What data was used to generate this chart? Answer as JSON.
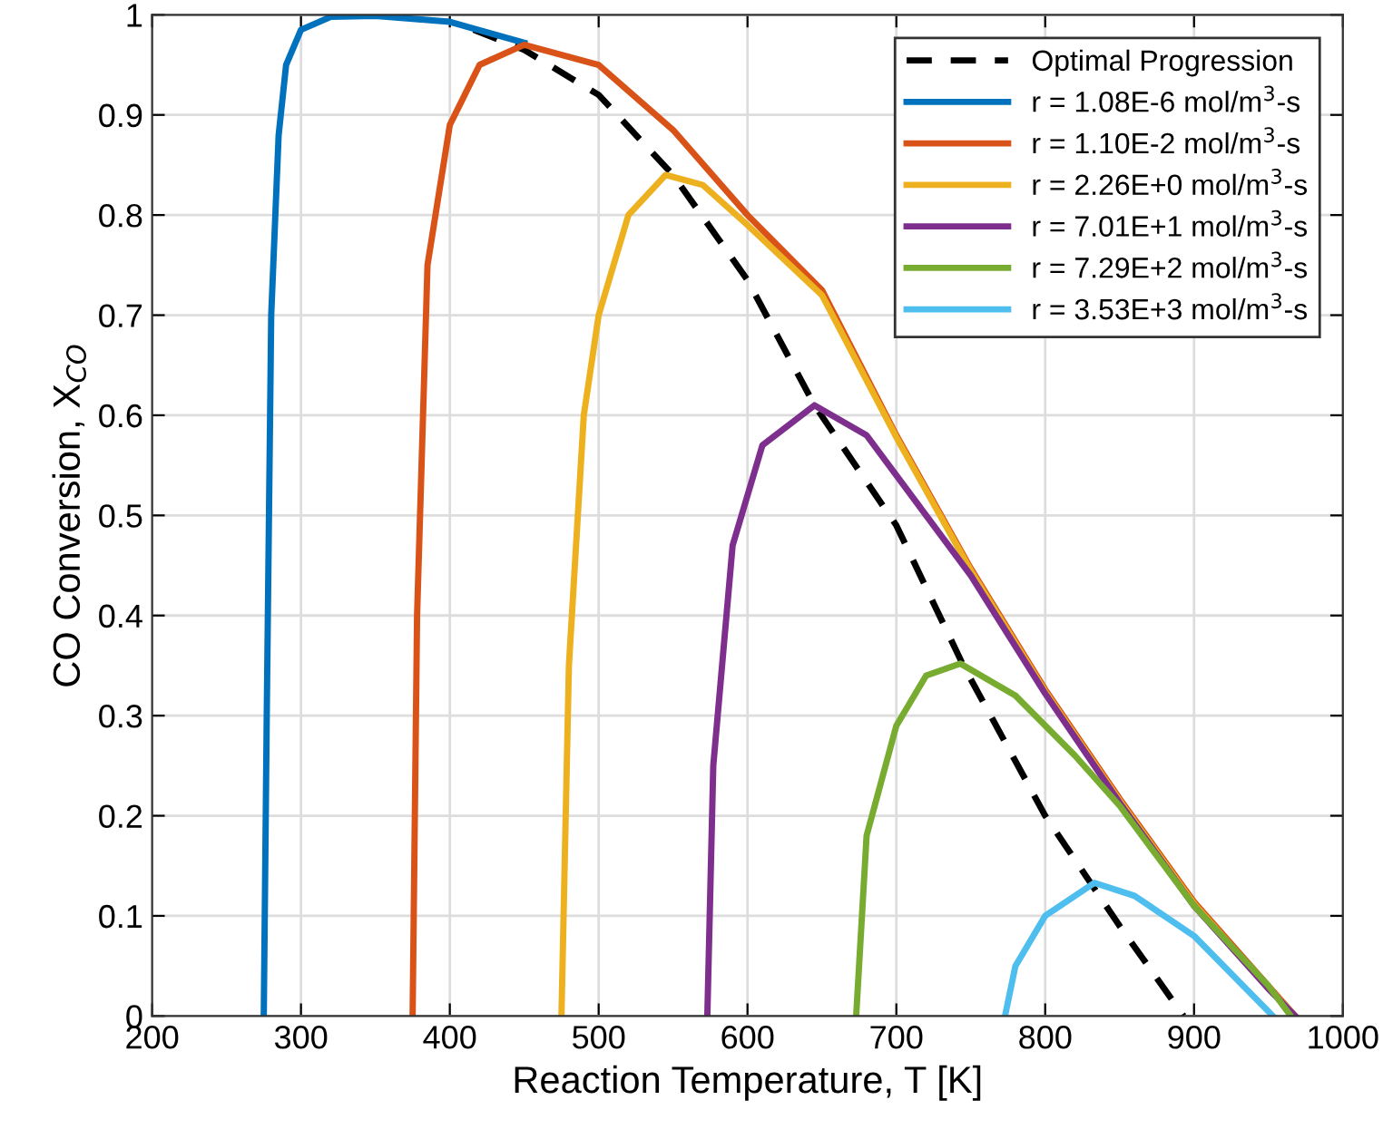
{
  "chart_data": {
    "type": "line",
    "xlabel": "Reaction Temperature, T [K]",
    "ylabel": "CO Conversion, X$_{CO}$",
    "xlim": [
      200,
      1000
    ],
    "ylim": [
      0,
      1
    ],
    "xticks": [
      200,
      300,
      400,
      500,
      600,
      700,
      800,
      900,
      1000
    ],
    "yticks": [
      0,
      0.1,
      0.2,
      0.3,
      0.4,
      0.5,
      0.6,
      0.7,
      0.8,
      0.9,
      1
    ],
    "grid": true,
    "legend": "top right",
    "marker": "none",
    "series": [
      {
        "name": "Optimal Progression",
        "color": "#000000",
        "line_style": "dashed",
        "x": [
          416,
          450,
          500,
          550,
          600,
          645,
          700,
          745,
          800,
          850,
          893
        ],
        "values": [
          0.985,
          0.965,
          0.92,
          0.84,
          0.735,
          0.61,
          0.49,
          0.35,
          0.2,
          0.09,
          0
        ]
      },
      {
        "name": "r = 1.08E-6 mol/m$^{3}$-s",
        "color": "#0072bd",
        "line_style": "solid",
        "x": [
          275,
          277,
          280,
          285,
          290,
          300,
          320,
          350,
          400,
          450
        ],
        "values": [
          0,
          0.3,
          0.7,
          0.88,
          0.95,
          0.985,
          0.998,
          0.999,
          0.993,
          0.972
        ]
      },
      {
        "name": "r = 1.10E-2 mol/m$^{3}$-s",
        "color": "#d95319",
        "line_style": "solid",
        "x": [
          375,
          378,
          385,
          400,
          420,
          450,
          500,
          550,
          600,
          650,
          700,
          750,
          800,
          850,
          900,
          950,
          968
        ],
        "values": [
          0,
          0.4,
          0.75,
          0.89,
          0.95,
          0.97,
          0.95,
          0.885,
          0.8,
          0.725,
          0.58,
          0.447,
          0.326,
          0.217,
          0.114,
          0.03,
          0
        ]
      },
      {
        "name": "r = 2.26E+0 mol/m$^{3}$-s",
        "color": "#edb120",
        "line_style": "solid",
        "x": [
          475,
          480,
          490,
          500,
          520,
          545,
          570,
          600,
          650,
          700,
          750,
          800,
          850,
          900,
          950,
          968
        ],
        "values": [
          0,
          0.35,
          0.6,
          0.7,
          0.8,
          0.84,
          0.83,
          0.79,
          0.72,
          0.578,
          0.445,
          0.324,
          0.215,
          0.112,
          0.028,
          0
        ]
      },
      {
        "name": "r = 7.01E+1 mol/m$^{3}$-s",
        "color": "#7e2f8e",
        "line_style": "solid",
        "x": [
          573,
          577,
          590,
          610,
          645,
          680,
          720,
          750,
          800,
          850,
          900,
          950,
          968
        ],
        "values": [
          0,
          0.25,
          0.47,
          0.57,
          0.61,
          0.58,
          0.5,
          0.44,
          0.322,
          0.213,
          0.11,
          0.027,
          0
        ]
      },
      {
        "name": "r = 7.29E+2 mol/m$^{3}$-s",
        "color": "#77ac30",
        "line_style": "solid",
        "x": [
          673,
          680,
          700,
          720,
          743,
          780,
          820,
          850,
          900,
          950,
          965
        ],
        "values": [
          0,
          0.18,
          0.29,
          0.34,
          0.352,
          0.32,
          0.26,
          0.21,
          0.11,
          0.03,
          0
        ]
      },
      {
        "name": "r = 3.53E+3 mol/m$^{3}$-s",
        "color": "#4dbeee",
        "line_style": "solid",
        "x": [
          773,
          780,
          800,
          833,
          860,
          900,
          953
        ],
        "values": [
          0,
          0.05,
          0.1,
          0.133,
          0.12,
          0.08,
          0
        ]
      }
    ]
  }
}
